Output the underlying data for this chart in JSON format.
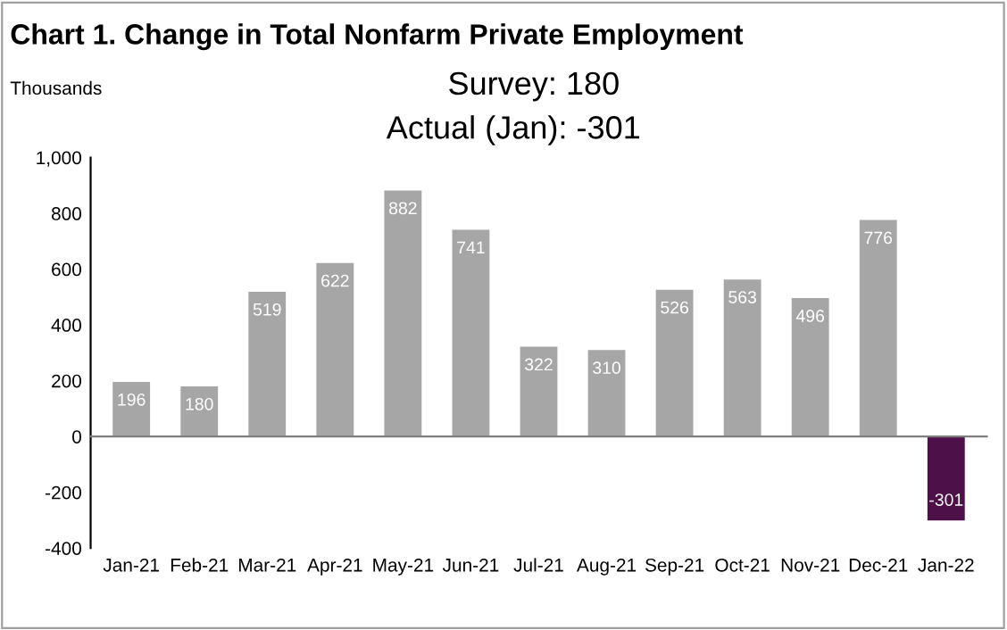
{
  "chart_data": {
    "type": "bar",
    "title": "Chart 1. Change in Total Nonfarm Private Employment",
    "ylabel": "Thousands",
    "annotations": [
      "Survey: 180",
      "Actual (Jan): -301"
    ],
    "categories": [
      "Jan-21",
      "Feb-21",
      "Mar-21",
      "Apr-21",
      "May-21",
      "Jun-21",
      "Jul-21",
      "Aug-21",
      "Sep-21",
      "Oct-21",
      "Nov-21",
      "Dec-21",
      "Jan-22"
    ],
    "values": [
      196,
      180,
      519,
      622,
      882,
      741,
      322,
      310,
      526,
      563,
      496,
      776,
      -301
    ],
    "colors": [
      "#a6a6a6",
      "#a6a6a6",
      "#a6a6a6",
      "#a6a6a6",
      "#a6a6a6",
      "#a6a6a6",
      "#a6a6a6",
      "#a6a6a6",
      "#a6a6a6",
      "#a6a6a6",
      "#a6a6a6",
      "#a6a6a6",
      "#4d1048"
    ],
    "data_labels": true,
    "legend": false,
    "ylim": [
      -400,
      1000
    ],
    "yticks": [
      -400,
      -200,
      0,
      200,
      400,
      600,
      {
        "value": 800,
        "label": "800"
      },
      {
        "value": 1000,
        "label": "1,000"
      }
    ]
  }
}
